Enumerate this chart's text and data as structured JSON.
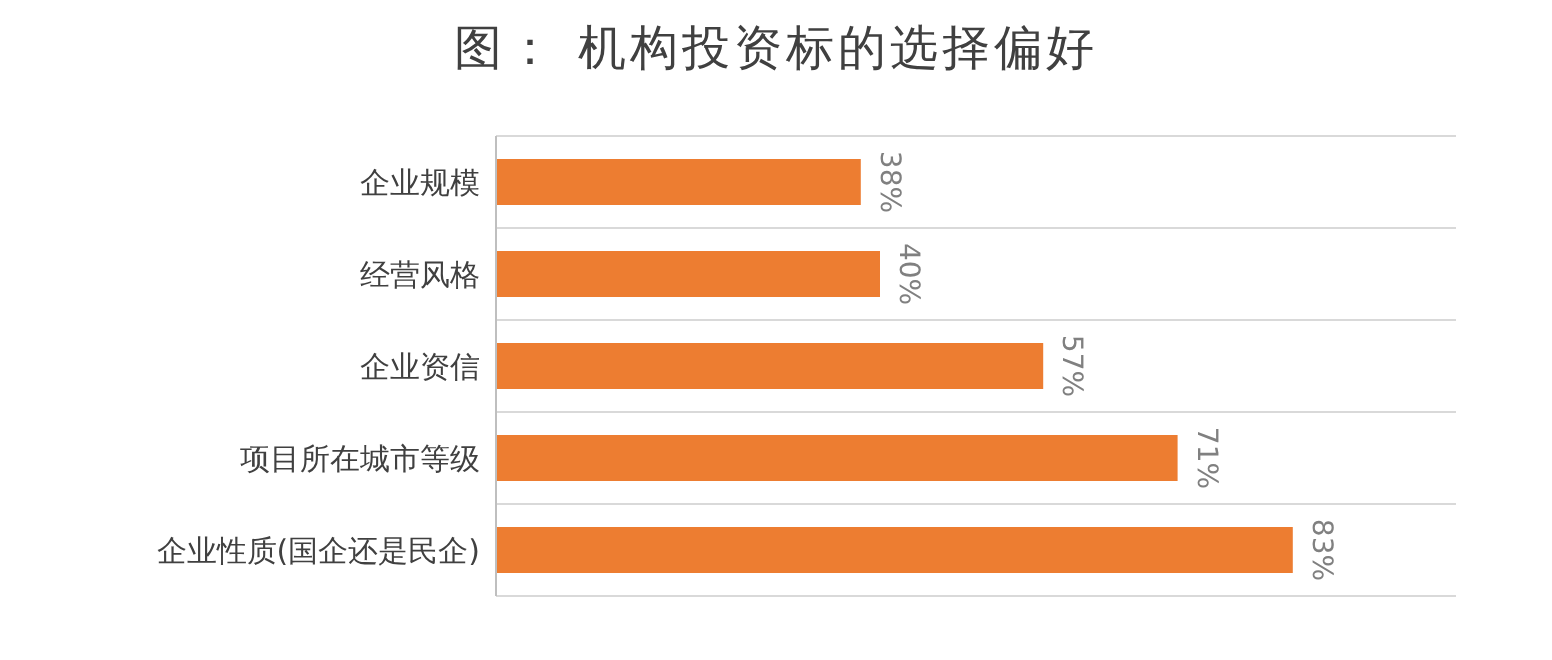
{
  "chart_data": {
    "type": "bar",
    "orientation": "horizontal",
    "title": "图： 机构投资标的选择偏好",
    "categories": [
      "企业规模",
      "经营风格",
      "企业资信",
      "项目所在城市等级",
      "企业性质(国企还是民企)"
    ],
    "values": [
      38,
      40,
      57,
      71,
      83
    ],
    "value_labels": [
      "38%",
      "40%",
      "57%",
      "71%",
      "83%"
    ],
    "color": "#ed7d31",
    "grid": "y"
  }
}
